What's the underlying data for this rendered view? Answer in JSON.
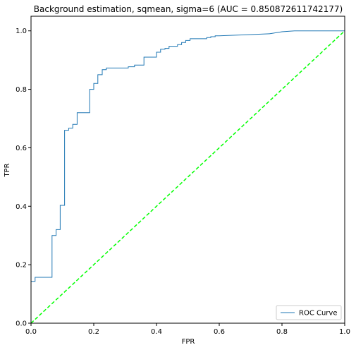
{
  "chart_data": {
    "type": "line",
    "title": "Background estimation, sqmean, sigma=6 (AUC = 0.850872611742177)",
    "xlabel": "FPR",
    "ylabel": "TPR",
    "xlim": [
      0.0,
      1.0
    ],
    "ylim": [
      0.0,
      1.05
    ],
    "xticks": [
      "0.0",
      "0.2",
      "0.4",
      "0.6",
      "0.8",
      "1.0"
    ],
    "yticks": [
      "0.0",
      "0.2",
      "0.4",
      "0.6",
      "0.8",
      "1.0"
    ],
    "grid": false,
    "legend_position": "lower-right",
    "series": [
      {
        "name": "ROC Curve",
        "color": "#1f77b4",
        "step": true,
        "x": [
          0.0,
          0.0,
          0.013,
          0.013,
          0.067,
          0.067,
          0.08,
          0.08,
          0.093,
          0.093,
          0.107,
          0.107,
          0.12,
          0.12,
          0.133,
          0.133,
          0.147,
          0.147,
          0.187,
          0.187,
          0.2,
          0.2,
          0.213,
          0.213,
          0.227,
          0.227,
          0.24,
          0.24,
          0.31,
          0.31,
          0.33,
          0.33,
          0.36,
          0.36,
          0.4,
          0.4,
          0.413,
          0.413,
          0.427,
          0.427,
          0.44,
          0.44,
          0.467,
          0.467,
          0.48,
          0.48,
          0.493,
          0.493,
          0.507,
          0.507,
          0.56,
          0.56,
          0.573,
          0.573,
          0.587,
          0.587,
          0.6,
          0.6,
          0.693,
          0.693,
          0.76,
          0.76,
          0.8,
          0.8,
          0.84,
          0.84,
          1.0
        ],
        "y": [
          0.0,
          0.143,
          0.143,
          0.157,
          0.157,
          0.3,
          0.3,
          0.32,
          0.32,
          0.403,
          0.403,
          0.66,
          0.66,
          0.667,
          0.667,
          0.68,
          0.68,
          0.72,
          0.72,
          0.8,
          0.8,
          0.82,
          0.82,
          0.85,
          0.85,
          0.867,
          0.867,
          0.873,
          0.873,
          0.877,
          0.877,
          0.883,
          0.883,
          0.91,
          0.91,
          0.927,
          0.927,
          0.937,
          0.937,
          0.94,
          0.94,
          0.947,
          0.947,
          0.953,
          0.953,
          0.96,
          0.96,
          0.967,
          0.967,
          0.973,
          0.973,
          0.977,
          0.977,
          0.98,
          0.98,
          0.983,
          0.983,
          0.983,
          0.987,
          0.987,
          0.99,
          0.99,
          0.997,
          0.997,
          1.0,
          1.0,
          1.0
        ]
      },
      {
        "name": "",
        "color": "#00ff00",
        "dashed": true,
        "x": [
          0.0,
          1.0
        ],
        "y": [
          0.0,
          1.0
        ]
      }
    ]
  }
}
